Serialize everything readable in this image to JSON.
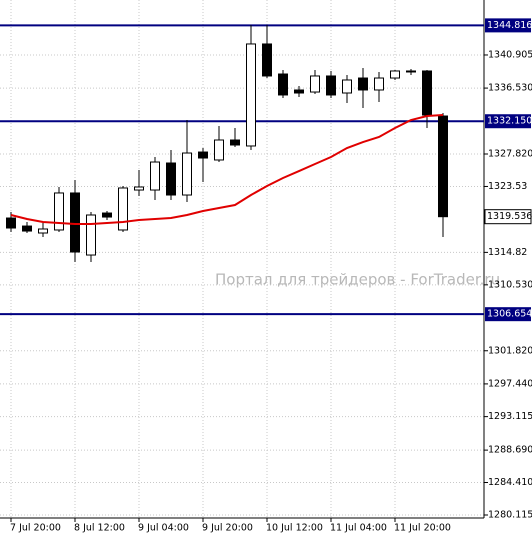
{
  "chart_data": {
    "type": "candlestick",
    "watermark": "Портал для трейдеров - ForTrader.ru",
    "categories": [
      "7 Jul 20:00",
      null,
      null,
      null,
      "8 Jul 12:00",
      null,
      null,
      null,
      "9 Jul 04:00",
      null,
      null,
      null,
      "9 Jul 20:00",
      null,
      null,
      null,
      "10 Jul 12:00",
      null,
      null,
      null,
      "11 Jul 04:00",
      null,
      null,
      null,
      "11 Jul 20:00",
      null,
      null,
      null
    ],
    "open": [
      1319.36,
      1318.3,
      1317.38,
      1317.78,
      1322.67,
      1314.47,
      1320.02,
      1317.78,
      1323.06,
      1323.06,
      1326.63,
      1322.4,
      1328.08,
      1327.03,
      1329.67,
      1328.88,
      1342.36,
      1338.39,
      1336.28,
      1336.01,
      1338.13,
      1335.88,
      1337.86,
      1336.28,
      1337.86,
      1338.66,
      1338.79,
      1332.84
    ],
    "high": [
      1320.15,
      1318.83,
      1318.7,
      1323.46,
      1324.38,
      1320.15,
      1320.29,
      1323.59,
      1325.7,
      1327.42,
      1328.35,
      1332.31,
      1328.61,
      1331.52,
      1331.25,
      1344.87,
      1344.87,
      1338.92,
      1336.81,
      1338.92,
      1338.79,
      1338.26,
      1339.18,
      1338.66,
      1338.92,
      1339.05,
      1338.92,
      1333.24
    ],
    "low": [
      1317.51,
      1317.38,
      1316.85,
      1317.51,
      1313.55,
      1313.55,
      1319.1,
      1317.51,
      1322.27,
      1321.74,
      1321.74,
      1321.48,
      1324.12,
      1326.76,
      1328.74,
      1328.35,
      1337.86,
      1335.22,
      1335.35,
      1335.75,
      1335.22,
      1334.56,
      1333.9,
      1334.69,
      1337.6,
      1338.26,
      1331.25,
      1316.85
    ],
    "close": [
      1318.04,
      1317.64,
      1317.91,
      1322.67,
      1314.87,
      1319.76,
      1319.49,
      1323.33,
      1323.46,
      1326.76,
      1322.4,
      1327.95,
      1327.29,
      1329.67,
      1329.01,
      1342.36,
      1338.13,
      1335.62,
      1335.88,
      1338.13,
      1335.62,
      1337.6,
      1336.28,
      1337.86,
      1338.79,
      1338.79,
      1332.97,
      1319.536
    ],
    "up_color": "#ffffff",
    "down_color": "#000000",
    "moving_average": {
      "color": "#e00000",
      "values": [
        1319.76,
        1319.23,
        1318.83,
        1318.7,
        1318.57,
        1318.57,
        1318.7,
        1318.83,
        1319.1,
        1319.23,
        1319.36,
        1319.76,
        1320.29,
        1320.68,
        1321.08,
        1322.4,
        1323.59,
        1324.65,
        1325.57,
        1326.5,
        1327.42,
        1328.61,
        1329.4,
        1330.07,
        1331.25,
        1332.31,
        1332.84,
        1332.97
      ]
    },
    "levels": [
      1344.816,
      {
        "value": 1332.15,
        "label": "1332.150"
      },
      1306.654
    ],
    "level_color": "#000080",
    "ylim": [
      1279.72,
      1348.17
    ],
    "yticks": [
      1340.905,
      {
        "value": 1336.53,
        "label": "1336.530"
      },
      {
        "value": 1327.82,
        "label": "1327.820"
      },
      1323.53,
      1314.82,
      {
        "value": 1310.53,
        "label": "1310.530"
      },
      {
        "value": 1301.82,
        "label": "1301.820"
      },
      {
        "value": 1297.44,
        "label": "1297.440"
      },
      1293.115,
      {
        "value": 1288.69,
        "label": "1288.690"
      },
      {
        "value": 1284.41,
        "label": "1284.410"
      },
      1280.115
    ],
    "grid": true
  }
}
